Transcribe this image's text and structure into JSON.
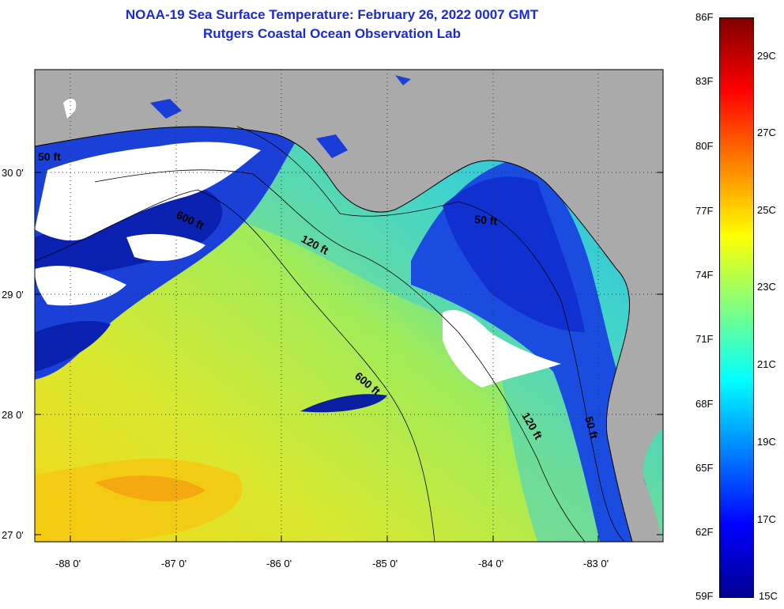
{
  "header": {
    "title_line1": "NOAA-19 Sea Surface Temperature:  February 26, 2022 0007 GMT",
    "title_line2": "Rutgers Coastal Ocean Observation Lab"
  },
  "axes": {
    "lat_labels": [
      "30 0'",
      "29 0'",
      "28 0'",
      "27 0'"
    ],
    "lon_labels": [
      "-88 0'",
      "-87 0'",
      "-86 0'",
      "-85 0'",
      "-84 0'",
      "-83 0'"
    ]
  },
  "contours": {
    "labels": [
      "50 ft",
      "120 ft",
      "600 ft",
      "120 ft",
      "50 ft",
      "600 ft",
      "50 ft"
    ]
  },
  "colorbar": {
    "f_labels": [
      "86F",
      "83F",
      "80F",
      "77F",
      "74F",
      "71F",
      "68F",
      "65F",
      "62F",
      "59F"
    ],
    "c_labels": [
      "29C",
      "27C",
      "25C",
      "23C",
      "21C",
      "19C",
      "17C",
      "15C"
    ],
    "stops": [
      "#00008f",
      "#0000ff",
      "#0080ff",
      "#00ffff",
      "#80ff80",
      "#ffff00",
      "#ff8000",
      "#ff0000",
      "#800000"
    ]
  },
  "legend_colors": {
    "land": "#aaaaaa",
    "cloud": "#ffffff",
    "cold_water": "#1a3cd8",
    "warm_water": "#d8e830"
  }
}
